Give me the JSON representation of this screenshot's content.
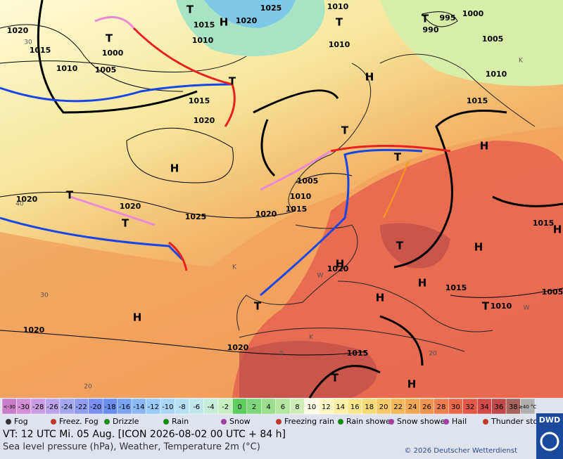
{
  "map": {
    "labels": [
      "1025",
      "1010",
      "1020",
      "1015",
      "1010",
      "1020",
      "1015",
      "1000",
      "1005",
      "1010",
      "1010",
      "1000",
      "995",
      "990",
      "1005",
      "1010",
      "1015",
      "1015",
      "1020",
      "1020",
      "1020",
      "1025",
      "1005",
      "1010",
      "1015",
      "1020",
      "1020",
      "1015",
      "1010",
      "1005",
      "1015",
      "1020",
      "1020",
      "1015",
      "T",
      "H",
      "T",
      "T",
      "T",
      "T",
      "H",
      "H",
      "H",
      "T",
      "T",
      "T",
      "T",
      "T",
      "H",
      "H",
      "H",
      "H",
      "H",
      "T",
      "T",
      "H",
      "T",
      "H",
      "K",
      "K",
      "W",
      "W",
      "K",
      "30",
      "40",
      "30",
      "0",
      "20",
      "20"
    ]
  },
  "legend": {
    "temperature_scale": [
      "<-30",
      "-30",
      "-28",
      "-26",
      "-24",
      "-22",
      "-20",
      "-18",
      "-16",
      "-14",
      "-12",
      "-10",
      "-8",
      "-6",
      "-4",
      "-2",
      "0",
      "2",
      "4",
      "6",
      "8",
      "10",
      "12",
      "14",
      "16",
      "18",
      "20",
      "22",
      "24",
      "26",
      "28",
      "30",
      "32",
      "34",
      "36",
      "38",
      "≥40 °C"
    ],
    "weather_symbols": [
      "Fog",
      "Freez. Fog",
      "Drizzle",
      "Rain",
      "Snow",
      "Freezing rain",
      "Rain shower",
      "Snow shower",
      "Hail",
      "Thunder storm"
    ]
  },
  "footer": {
    "valid_time": "VT: 12 UTC Mi.  05 Aug. [ICON 2026-08-02  00 UTC + 84 h]",
    "description": "Sea level pressure (hPa), Weather, Temperature 2m (°C)",
    "copyright": "© 2026 Deutscher Wetterdienst",
    "logo": "DWD"
  }
}
